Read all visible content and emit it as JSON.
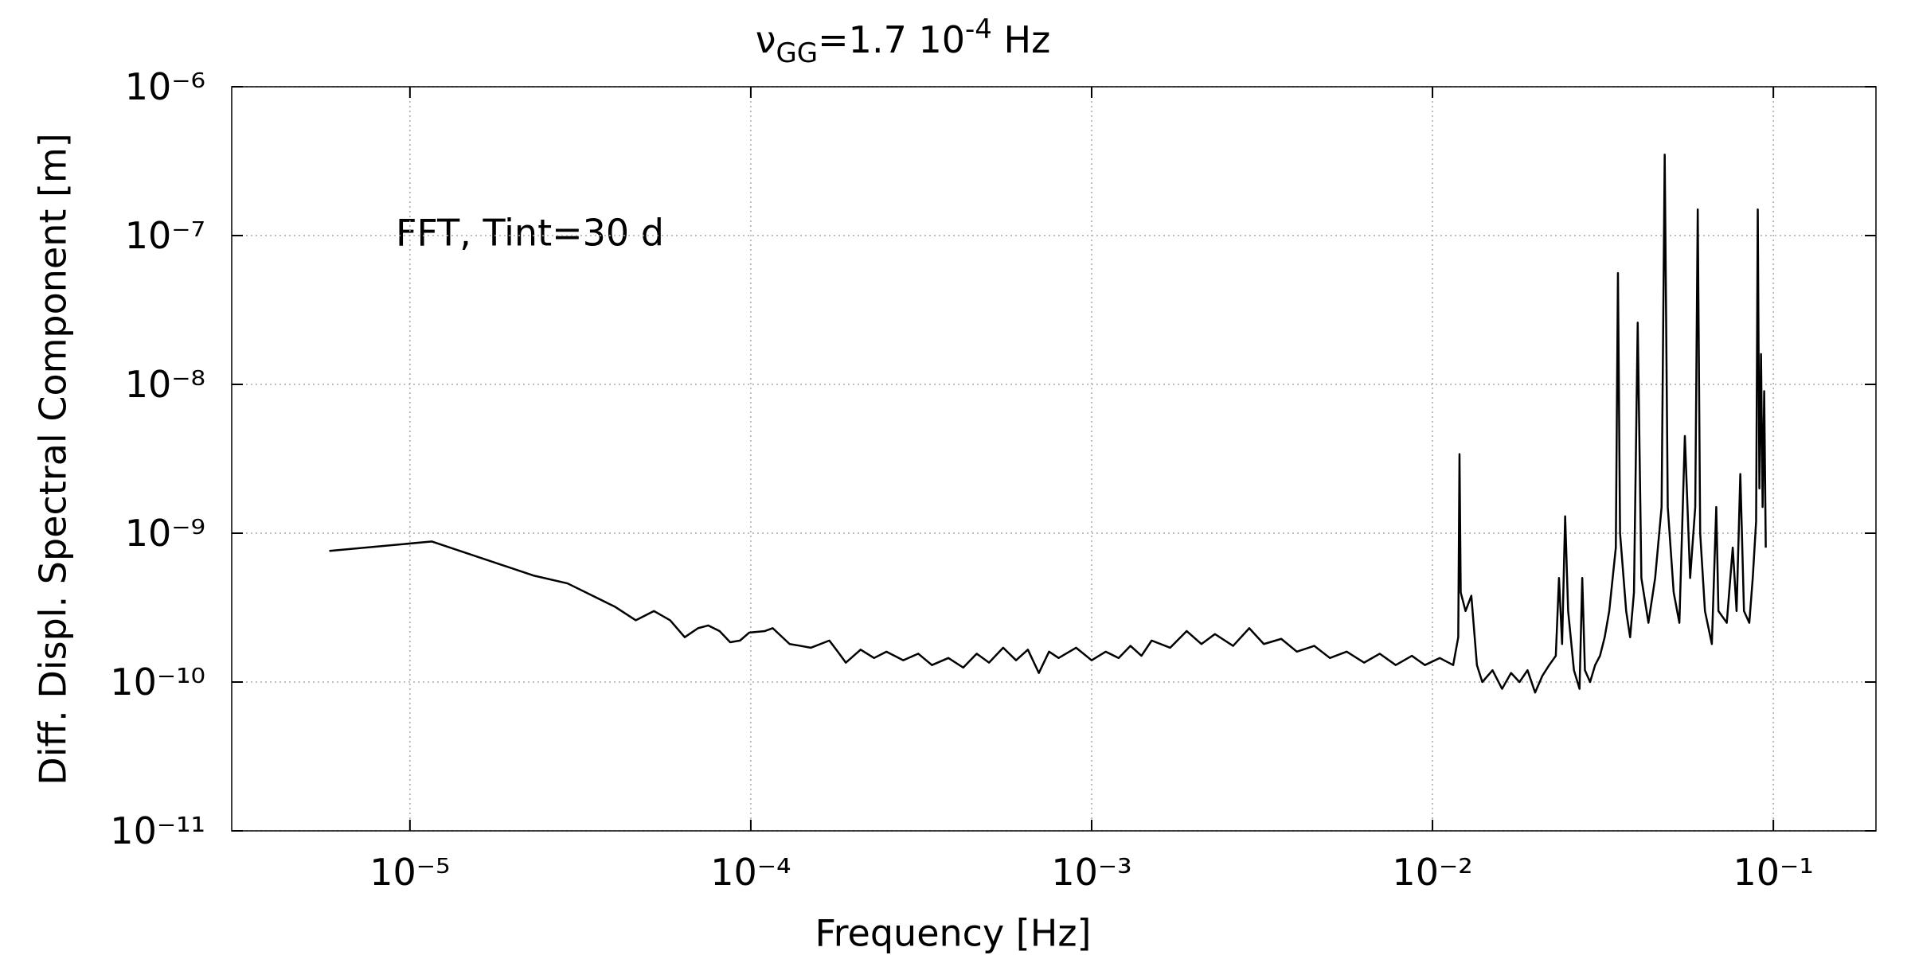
{
  "chart_data": {
    "type": "line",
    "title": [
      "ν",
      "GG",
      "=1.7 10",
      "-4",
      " Hz"
    ],
    "annotation": "FFT, Tint=30 d",
    "xlabel": "Frequency [Hz]",
    "ylabel": "Diff. Displ. Spectral Component [m]",
    "xscale": "log",
    "yscale": "log",
    "grid": true,
    "xlim": [
      3e-06,
      0.2
    ],
    "ylim": [
      1e-11,
      1e-06
    ],
    "xticks": [
      {
        "value": 1e-05,
        "label": "10⁻⁵"
      },
      {
        "value": 0.0001,
        "label": "10⁻⁴"
      },
      {
        "value": 0.001,
        "label": "10⁻³"
      },
      {
        "value": 0.01,
        "label": "10⁻²"
      },
      {
        "value": 0.1,
        "label": "10⁻¹"
      }
    ],
    "yticks": [
      {
        "value": 1e-11,
        "label": "10⁻¹¹"
      },
      {
        "value": 1e-10,
        "label": "10⁻¹⁰"
      },
      {
        "value": 1e-09,
        "label": "10⁻⁹"
      },
      {
        "value": 1e-08,
        "label": "10⁻⁸"
      },
      {
        "value": 1e-07,
        "label": "10⁻⁷"
      },
      {
        "value": 1e-06,
        "label": "10⁻⁶"
      }
    ],
    "x": [
      5.8e-06,
      1.16e-05,
      2.3e-05,
      2.9e-05,
      4e-05,
      4.6e-05,
      5.2e-05,
      5.8e-05,
      6.4e-05,
      7e-05,
      7.5e-05,
      8.1e-05,
      8.7e-05,
      9.3e-05,
      9.9e-05,
      0.00011,
      0.000116,
      0.00013,
      0.00014,
      0.00015,
      0.00017,
      0.00018,
      0.00019,
      0.00021,
      0.00023,
      0.00025,
      0.00028,
      0.00031,
      0.00034,
      0.00038,
      0.00042,
      0.00046,
      0.0005,
      0.00055,
      0.0006,
      0.00065,
      0.0007,
      0.00075,
      0.0008,
      0.0009,
      0.001,
      0.0011,
      0.0012,
      0.0013,
      0.0014,
      0.0015,
      0.0017,
      0.0019,
      0.0021,
      0.0023,
      0.0026,
      0.0029,
      0.0032,
      0.0036,
      0.004,
      0.0045,
      0.005,
      0.0056,
      0.0063,
      0.007,
      0.0078,
      0.0087,
      0.0095,
      0.0105,
      0.0115,
      0.0119,
      0.012,
      0.0121,
      0.0125,
      0.013,
      0.0135,
      0.014,
      0.015,
      0.016,
      0.017,
      0.018,
      0.019,
      0.02,
      0.021,
      0.022,
      0.023,
      0.0235,
      0.024,
      0.0245,
      0.025,
      0.026,
      0.027,
      0.0275,
      0.028,
      0.029,
      0.03,
      0.031,
      0.032,
      0.033,
      0.0345,
      0.035,
      0.0355,
      0.037,
      0.038,
      0.039,
      0.04,
      0.041,
      0.043,
      0.045,
      0.047,
      0.048,
      0.049,
      0.051,
      0.053,
      0.055,
      0.057,
      0.059,
      0.06,
      0.061,
      0.063,
      0.066,
      0.068,
      0.069,
      0.073,
      0.076,
      0.078,
      0.08,
      0.082,
      0.085,
      0.087,
      0.089,
      0.09,
      0.091,
      0.092,
      0.093,
      0.094,
      0.095
    ],
    "series": [
      {
        "name": "spectrum",
        "color": "#000000",
        "values": [
          7.6e-10,
          8.8e-10,
          5.2e-10,
          4.6e-10,
          3.2e-10,
          2.6e-10,
          3e-10,
          2.6e-10,
          2e-10,
          2.3e-10,
          2.4e-10,
          2.2e-10,
          1.85e-10,
          1.9e-10,
          2.15e-10,
          2.2e-10,
          2.3e-10,
          1.8e-10,
          1.75e-10,
          1.7e-10,
          1.9e-10,
          1.6e-10,
          1.35e-10,
          1.65e-10,
          1.45e-10,
          1.6e-10,
          1.4e-10,
          1.55e-10,
          1.3e-10,
          1.45e-10,
          1.25e-10,
          1.55e-10,
          1.35e-10,
          1.7e-10,
          1.4e-10,
          1.65e-10,
          1.15e-10,
          1.6e-10,
          1.45e-10,
          1.7e-10,
          1.4e-10,
          1.6e-10,
          1.45e-10,
          1.75e-10,
          1.5e-10,
          1.9e-10,
          1.7e-10,
          2.2e-10,
          1.8e-10,
          2.1e-10,
          1.75e-10,
          2.3e-10,
          1.8e-10,
          1.95e-10,
          1.6e-10,
          1.75e-10,
          1.45e-10,
          1.6e-10,
          1.35e-10,
          1.55e-10,
          1.3e-10,
          1.5e-10,
          1.3e-10,
          1.45e-10,
          1.3e-10,
          2e-10,
          3.4e-09,
          4e-10,
          3e-10,
          3.8e-10,
          1.3e-10,
          1e-10,
          1.2e-10,
          9e-11,
          1.15e-10,
          1e-10,
          1.2e-10,
          8.5e-11,
          1.1e-10,
          1.3e-10,
          1.5e-10,
          5e-10,
          1.8e-10,
          1.3e-09,
          3e-10,
          1.2e-10,
          9e-11,
          5e-10,
          1.2e-10,
          1e-10,
          1.3e-10,
          1.5e-10,
          2e-10,
          3e-10,
          8e-10,
          5.6e-08,
          1e-09,
          3e-10,
          2e-10,
          4e-10,
          2.6e-08,
          5e-10,
          2.5e-10,
          5e-10,
          1.5e-09,
          3.5e-07,
          1.5e-09,
          4e-10,
          2.5e-10,
          4.5e-09,
          5e-10,
          1.5e-09,
          1.5e-07,
          1e-09,
          3e-10,
          1.8e-10,
          1.5e-09,
          3e-10,
          2.5e-10,
          8e-10,
          3e-10,
          2.5e-09,
          3e-10,
          2.5e-10,
          5e-10,
          1.2e-09,
          1.5e-07,
          2e-09,
          1.6e-08,
          1.5e-09,
          9e-09,
          8e-10
        ]
      }
    ]
  }
}
